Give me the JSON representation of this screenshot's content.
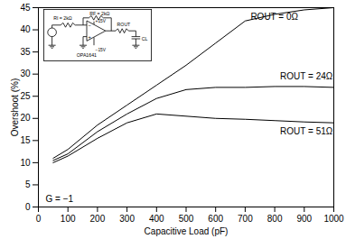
{
  "chart_data": {
    "type": "line",
    "x_label": "Capacitive Load (pF)",
    "y_label": "Overshoot (%)",
    "xlim": [
      0,
      1000
    ],
    "ylim": [
      0,
      45
    ],
    "xticks": [
      0,
      100,
      200,
      300,
      400,
      500,
      600,
      700,
      800,
      900,
      1000
    ],
    "yticks": [
      0,
      5,
      10,
      15,
      20,
      25,
      30,
      35,
      40,
      45
    ],
    "grid": false,
    "annotations": [
      "G = −1"
    ],
    "schematic": {
      "ri": "RI = 2kΩ",
      "rf": "RF = 2kΩ",
      "vpos": "+15V",
      "vneg": "−15V",
      "part": "OPA1641",
      "rout": "ROUT",
      "cl": "CL",
      "inv": "−",
      "noninv": "+"
    },
    "x": [
      50,
      100,
      200,
      300,
      400,
      500,
      600,
      700,
      800,
      900,
      1000
    ],
    "series": [
      {
        "name": "ROUT = 0Ω",
        "color": "#000000",
        "values": [
          11,
          13,
          18.5,
          23,
          27.5,
          32,
          37,
          42,
          43.5,
          44.5,
          45
        ]
      },
      {
        "name": "ROUT = 24Ω",
        "color": "#000000",
        "values": [
          10.5,
          12,
          17,
          21,
          24.5,
          26.5,
          27,
          27,
          27.2,
          27.2,
          27
        ]
      },
      {
        "name": "ROUT = 51Ω",
        "color": "#000000",
        "values": [
          10,
          11.5,
          15.5,
          19,
          21,
          20.5,
          20,
          19.8,
          19.5,
          19.2,
          19
        ]
      }
    ]
  }
}
